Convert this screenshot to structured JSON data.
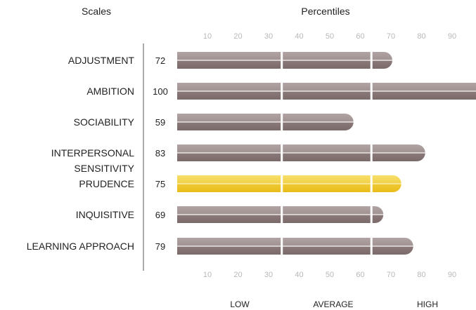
{
  "headers": {
    "scales": "Scales",
    "percentiles": "Percentiles"
  },
  "bands": [
    "LOW",
    "AVERAGE",
    "HIGH"
  ],
  "colors": {
    "bar_default_top": "#b1a3a3",
    "bar_default_bottom": "#7b6a6a",
    "bar_highlight_top": "#f7df6a",
    "bar_highlight_bottom": "#e9bc1a",
    "tick_text": "#b8b8b8",
    "divider": "#ffffff"
  },
  "chart_data": {
    "type": "bar",
    "orientation": "horizontal",
    "xlim": [
      0,
      100
    ],
    "ticks": [
      10,
      20,
      30,
      40,
      50,
      60,
      70,
      80,
      90
    ],
    "band_boundaries": [
      35,
      65
    ],
    "categories": [
      {
        "label": "ADJUSTMENT",
        "value": 72,
        "highlight": false
      },
      {
        "label": "AMBITION",
        "value": 100,
        "highlight": false
      },
      {
        "label": "SOCIABILITY",
        "value": 59,
        "highlight": false
      },
      {
        "label": "INTERPERSONAL SENSITIVITY",
        "label_lines": [
          "INTERPERSONAL",
          "SENSITIVITY"
        ],
        "value": 83,
        "highlight": false
      },
      {
        "label": "PRUDENCE",
        "value": 75,
        "highlight": true
      },
      {
        "label": "INQUISITIVE",
        "value": 69,
        "highlight": false
      },
      {
        "label": "LEARNING APPROACH",
        "value": 79,
        "highlight": false
      }
    ]
  }
}
